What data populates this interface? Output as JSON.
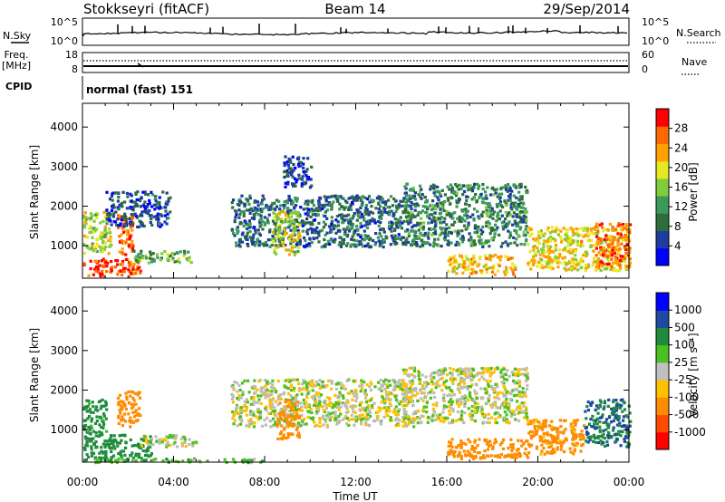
{
  "header": {
    "station": "Stokkseyri (fitACF)",
    "beam": "Beam 14",
    "date": "29/Sep/2014"
  },
  "noise_panel": {
    "left_label": "N.Sky",
    "right_label": "N.Search",
    "left_ticks": [
      "10^5",
      "10^0"
    ],
    "right_ticks": [
      "10^5",
      "10^0"
    ]
  },
  "freq_panel": {
    "left_label_1": "Freq.",
    "left_label_2": "[MHz]",
    "left_ticks": [
      "18",
      "8"
    ],
    "right_label": "Nave",
    "right_ticks": [
      "60",
      "0"
    ]
  },
  "cpid_panel": {
    "label": "CPID",
    "text": "normal (fast) 151"
  },
  "colors": {
    "power": [
      "#0000ff",
      "#1e3ca0",
      "#2e6e3c",
      "#3a9a5a",
      "#7fcc3c",
      "#e8e820",
      "#ffa000",
      "#ff6a00",
      "#ff0000"
    ],
    "velocity": [
      "#ff0000",
      "#ff4a00",
      "#ff8c00",
      "#ffc000",
      "#c0c0c0",
      "#4cc020",
      "#1e8c3c",
      "#1e4aa0",
      "#0000ff"
    ],
    "ground_scatter": "#bdbdb6"
  },
  "chart_data": [
    {
      "type": "heatmap",
      "name": "power",
      "ylabel": "Slant Range [km]",
      "xlabel": "",
      "x_range_hours": [
        0,
        24
      ],
      "ylim": [
        180,
        4600
      ],
      "yticks": [
        "1000",
        "2000",
        "3000",
        "4000"
      ],
      "colorbar": {
        "label": "Power [dB]",
        "ticks": [
          "4",
          "8",
          "12",
          "16",
          "20",
          "24",
          "28"
        ],
        "range": [
          0,
          32
        ]
      },
      "regions": [
        {
          "t0": 0.0,
          "t1": 2.5,
          "r0": 250,
          "r1": 700,
          "value": 28
        },
        {
          "t0": 0.0,
          "t1": 1.2,
          "r0": 800,
          "r1": 1900,
          "value": 18
        },
        {
          "t0": 1.5,
          "t1": 2.2,
          "r0": 800,
          "r1": 1800,
          "value": 26
        },
        {
          "t0": 2.2,
          "t1": 4.8,
          "r0": 600,
          "r1": 900,
          "value": 14
        },
        {
          "t0": 1.0,
          "t1": 3.8,
          "r0": 1500,
          "r1": 2400,
          "value": 6
        },
        {
          "t0": 6.5,
          "t1": 14.0,
          "r0": 1000,
          "r1": 2300,
          "value": 8
        },
        {
          "t0": 8.3,
          "t1": 9.5,
          "r0": 800,
          "r1": 1900,
          "value": 18
        },
        {
          "t0": 8.8,
          "t1": 10.0,
          "r0": 2500,
          "r1": 3300,
          "value": 6
        },
        {
          "t0": 14.0,
          "t1": 19.5,
          "r0": 1000,
          "r1": 2600,
          "value": 10
        },
        {
          "t0": 16.0,
          "t1": 19.0,
          "r0": 300,
          "r1": 800,
          "value": 22
        },
        {
          "t0": 19.5,
          "t1": 24.0,
          "r0": 400,
          "r1": 1500,
          "value": 20
        },
        {
          "t0": 22.5,
          "t1": 24.0,
          "r0": 500,
          "r1": 1600,
          "value": 26
        }
      ]
    },
    {
      "type": "heatmap",
      "name": "velocity",
      "ylabel": "Slant Range [km]",
      "xlabel": "Time UT",
      "x_range_hours": [
        0,
        24
      ],
      "xticks": [
        "00:00",
        "04:00",
        "08:00",
        "12:00",
        "16:00",
        "20:00",
        "00:00"
      ],
      "ylim": [
        180,
        4600
      ],
      "yticks": [
        "1000",
        "2000",
        "3000",
        "4000"
      ],
      "colorbar": {
        "label": "Velocity [m s⁻¹]",
        "ticks": [
          "1000",
          "500",
          "100",
          "25",
          "-25",
          "-100",
          "-500",
          "-1000"
        ]
      },
      "regions": [
        {
          "t0": 0.0,
          "t1": 3.0,
          "r0": 250,
          "r1": 900,
          "value": 300
        },
        {
          "t0": 0.0,
          "t1": 1.0,
          "r0": 900,
          "r1": 1800,
          "value": 150
        },
        {
          "t0": 1.5,
          "t1": 2.5,
          "r0": 1100,
          "r1": 2000,
          "value": -200
        },
        {
          "t0": 2.5,
          "t1": 5.0,
          "r0": 600,
          "r1": 900,
          "value": 0
        },
        {
          "t0": 0.5,
          "t1": 8.0,
          "r0": 200,
          "r1": 300,
          "value": 60
        },
        {
          "t0": 6.5,
          "t1": 14.5,
          "r0": 1100,
          "r1": 2300,
          "value": 0
        },
        {
          "t0": 8.5,
          "t1": 9.5,
          "r0": 800,
          "r1": 1800,
          "value": -300
        },
        {
          "t0": 14.0,
          "t1": 19.5,
          "r0": 1200,
          "r1": 2600,
          "value": 0
        },
        {
          "t0": 16.0,
          "t1": 19.5,
          "r0": 300,
          "r1": 800,
          "value": -300
        },
        {
          "t0": 19.5,
          "t1": 22.0,
          "r0": 400,
          "r1": 1300,
          "value": -150
        },
        {
          "t0": 22.0,
          "t1": 24.0,
          "r0": 600,
          "r1": 1800,
          "value": 500
        }
      ]
    }
  ]
}
